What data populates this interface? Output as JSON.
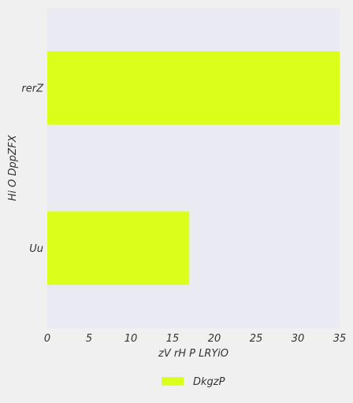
{
  "chart_data": {
    "type": "bar",
    "orientation": "horizontal",
    "title": "",
    "xlabel": "zV rH  P LRYiO",
    "ylabel": "Hi O DppZFX",
    "categories": [
      "Uu",
      "rerZ"
    ],
    "series": [
      {
        "name": "DkgzP",
        "values": [
          17,
          35
        ]
      }
    ],
    "xlim": [
      0,
      35
    ],
    "xticks": [
      0,
      5,
      10,
      15,
      20,
      25,
      30,
      35
    ],
    "grid": false,
    "legend_position": "bottom-center",
    "colors": {
      "bar": "#dbff1a",
      "plot_background": "#eaeaf2",
      "page_background": "#f0f0f0",
      "text": "#333333"
    }
  }
}
